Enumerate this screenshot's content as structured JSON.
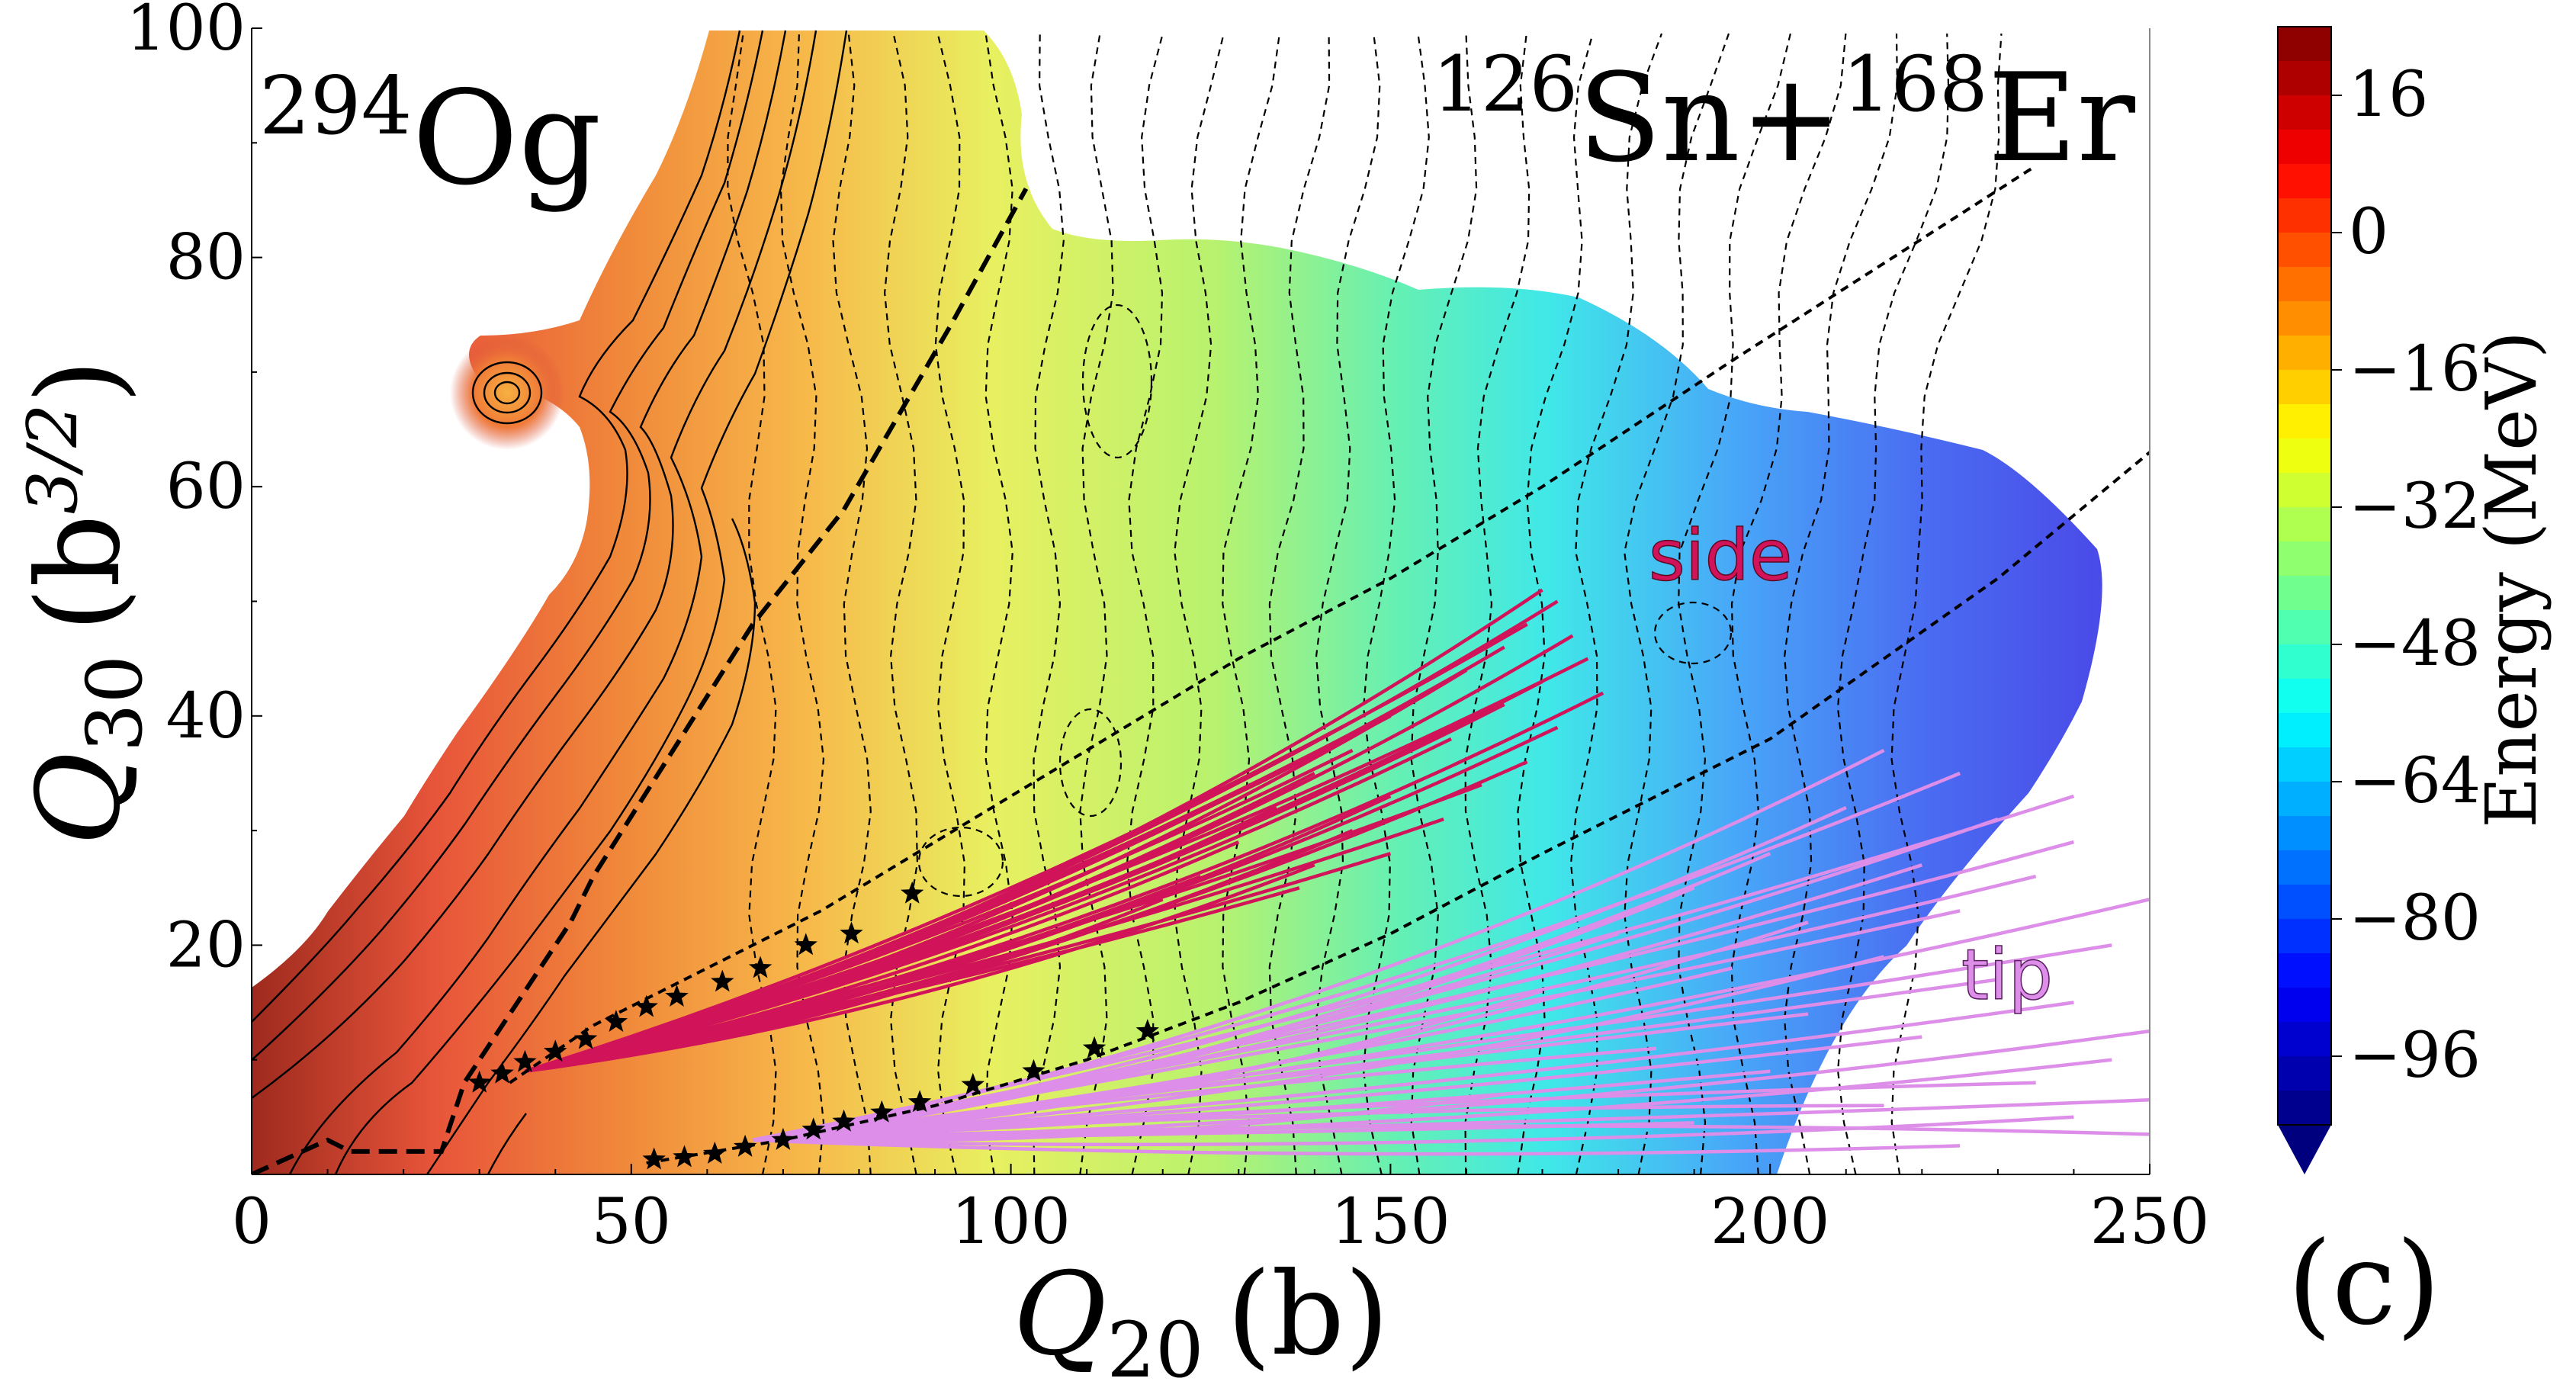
{
  "chart_data": {
    "type": "heatmap",
    "title": "",
    "nucleus": {
      "mass": "294",
      "symbol": "Og"
    },
    "reaction": {
      "a1": "126",
      "s1": "Sn",
      "plus": "+",
      "a2": "168",
      "s2": "Er"
    },
    "panel_label": "(c)",
    "xlabel": {
      "base": "Q",
      "sub": "20",
      "unit": "(b)"
    },
    "ylabel": {
      "base": "Q",
      "sub": "30",
      "unit_open": "(b",
      "unit_sup": "3/2",
      "unit_close": ")"
    },
    "xlim": [
      0,
      250
    ],
    "ylim": [
      0,
      100
    ],
    "x_ticks": [
      "0",
      "50",
      "100",
      "150",
      "200",
      "250"
    ],
    "y_ticks": [
      "20",
      "40",
      "60",
      "80",
      "100"
    ],
    "colorbar": {
      "label": "Energy (MeV)",
      "range": [
        -104,
        24
      ],
      "ticks": [
        "16",
        "0",
        "−16",
        "−32",
        "−48",
        "−64",
        "−80",
        "−96"
      ],
      "extend": "min"
    },
    "annotations": [
      "side",
      "tip"
    ],
    "colors": {
      "side": "#d1145a",
      "tip": "#dc8ee8",
      "contours": "#000000"
    },
    "fission_path": [
      [
        0,
        0
      ],
      [
        10,
        3
      ],
      [
        13,
        2
      ],
      [
        25,
        2
      ],
      [
        28,
        8
      ],
      [
        42,
        22
      ],
      [
        45,
        26
      ],
      [
        66,
        48
      ],
      [
        78,
        58
      ],
      [
        92,
        74
      ],
      [
        102,
        86
      ]
    ],
    "side_valley": [
      [
        34,
        8
      ],
      [
        45,
        13
      ],
      [
        60,
        18
      ],
      [
        75,
        23
      ],
      [
        90,
        29
      ],
      [
        110,
        37
      ],
      [
        130,
        45
      ],
      [
        150,
        52
      ],
      [
        170,
        60
      ],
      [
        195,
        71
      ],
      [
        235,
        88
      ]
    ],
    "tip_valley": [
      [
        52,
        1
      ],
      [
        70,
        3
      ],
      [
        90,
        6
      ],
      [
        110,
        10
      ],
      [
        130,
        15
      ],
      [
        150,
        21
      ],
      [
        170,
        28
      ],
      [
        200,
        38
      ],
      [
        230,
        52
      ],
      [
        250,
        63
      ]
    ],
    "side_stars": [
      [
        30,
        8
      ],
      [
        33,
        8.8
      ],
      [
        36,
        9.8
      ],
      [
        40,
        10.7
      ],
      [
        44,
        11.8
      ],
      [
        48,
        13.3
      ],
      [
        52,
        14.6
      ],
      [
        56,
        15.5
      ],
      [
        62,
        16.8
      ],
      [
        67,
        18
      ],
      [
        73,
        20
      ],
      [
        79,
        21
      ],
      [
        87,
        24.5
      ]
    ],
    "tip_stars": [
      [
        53,
        1.3
      ],
      [
        57,
        1.5
      ],
      [
        61,
        1.8
      ],
      [
        65,
        2.4
      ],
      [
        70,
        3
      ],
      [
        74,
        3.9
      ],
      [
        78,
        4.6
      ],
      [
        83,
        5.4
      ],
      [
        88,
        6.3
      ],
      [
        95,
        7.8
      ],
      [
        103,
        9
      ],
      [
        111,
        11
      ],
      [
        118,
        12.5
      ]
    ],
    "side_trajectories": {
      "origin": [
        36,
        9
      ],
      "ends": [
        [
          170,
          51
        ],
        [
          172,
          50
        ],
        [
          168,
          48
        ],
        [
          174,
          47
        ],
        [
          165,
          46
        ],
        [
          176,
          45
        ],
        [
          160,
          44
        ],
        [
          170,
          43
        ],
        [
          155,
          42
        ],
        [
          178,
          42
        ],
        [
          165,
          41
        ],
        [
          150,
          40
        ],
        [
          172,
          39
        ],
        [
          158,
          38
        ],
        [
          145,
          37
        ],
        [
          168,
          36
        ],
        [
          140,
          35
        ],
        [
          162,
          34
        ],
        [
          150,
          33
        ],
        [
          135,
          32
        ],
        [
          157,
          31
        ],
        [
          145,
          30
        ],
        [
          130,
          29
        ],
        [
          150,
          28
        ],
        [
          140,
          27
        ],
        [
          125,
          26
        ],
        [
          138,
          25
        ],
        [
          120,
          24
        ]
      ]
    },
    "tip_trajectories": {
      "origin": [
        66,
        3
      ],
      "ends": [
        [
          215,
          37
        ],
        [
          225,
          35
        ],
        [
          240,
          33
        ],
        [
          210,
          32
        ],
        [
          230,
          31
        ],
        [
          240,
          29
        ],
        [
          200,
          28
        ],
        [
          220,
          27
        ],
        [
          235,
          26
        ],
        [
          190,
          25
        ],
        [
          250,
          24
        ],
        [
          225,
          23
        ],
        [
          205,
          22
        ],
        [
          180,
          21
        ],
        [
          245,
          20
        ],
        [
          215,
          19
        ],
        [
          195,
          18
        ],
        [
          230,
          17
        ],
        [
          170,
          16
        ],
        [
          240,
          15
        ],
        [
          205,
          14
        ],
        [
          250,
          12.5
        ],
        [
          220,
          12
        ],
        [
          185,
          11
        ],
        [
          245,
          10
        ],
        [
          200,
          9
        ],
        [
          235,
          8
        ],
        [
          165,
          7
        ],
        [
          250,
          6.5
        ],
        [
          215,
          6
        ],
        [
          240,
          5
        ],
        [
          190,
          4.5
        ],
        [
          250,
          3.5
        ],
        [
          225,
          2.5
        ]
      ]
    },
    "surface_samples": [
      {
        "x": 5,
        "y": 10,
        "energy": 16
      },
      {
        "x": 35,
        "y": 69,
        "energy": 10
      },
      {
        "x": 60,
        "y": 30,
        "energy": -8
      },
      {
        "x": 100,
        "y": 60,
        "energy": -24
      },
      {
        "x": 150,
        "y": 40,
        "energy": -52
      },
      {
        "x": 200,
        "y": 40,
        "energy": -66
      },
      {
        "x": 230,
        "y": 30,
        "energy": -84
      }
    ]
  }
}
